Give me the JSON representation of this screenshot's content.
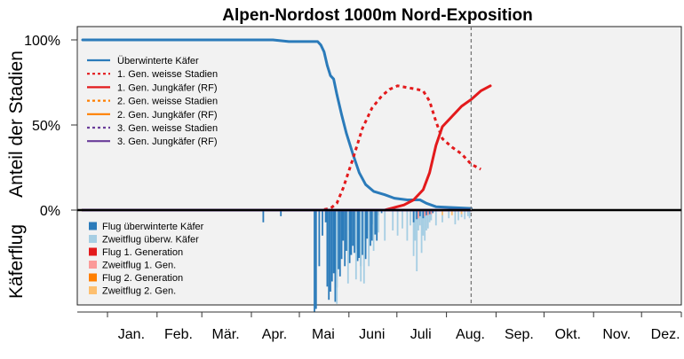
{
  "chart_data": {
    "type": "line",
    "title": "Alpen-Nordost 1000m Nord-Exposition",
    "ylabel_top": "Anteil der Stadien",
    "ylabel_bottom": "Käferflug",
    "yticks": [
      "100%",
      "50%",
      "0%"
    ],
    "months": [
      "Jan.",
      "Feb.",
      "Mär.",
      "Apr.",
      "Mai",
      "Juni",
      "Juli",
      "Aug.",
      "Sep.",
      "Okt.",
      "Nov.",
      "Dez."
    ],
    "grid": false,
    "legend_position": "top-left",
    "current_day": 244,
    "series": [
      {
        "name": "Überwinterte Käfer",
        "color": "#2b7bba",
        "dash": "solid",
        "points": [
          [
            1,
            100
          ],
          [
            80,
            100
          ],
          [
            120,
            100
          ],
          [
            130,
            99
          ],
          [
            148,
            99
          ],
          [
            150,
            97
          ],
          [
            152,
            93
          ],
          [
            154,
            85
          ],
          [
            156,
            79
          ],
          [
            158,
            77
          ],
          [
            160,
            68
          ],
          [
            163,
            56
          ],
          [
            166,
            45
          ],
          [
            170,
            33
          ],
          [
            174,
            22
          ],
          [
            178,
            15
          ],
          [
            183,
            11
          ],
          [
            190,
            9
          ],
          [
            196,
            7
          ],
          [
            204,
            6
          ],
          [
            212,
            6
          ],
          [
            216,
            4
          ],
          [
            222,
            2
          ],
          [
            232,
            1.5
          ],
          [
            244,
            1
          ]
        ]
      },
      {
        "name": "1. Gen. weisse Stadien",
        "color": "#e31a1c",
        "dash": "dotted",
        "points": [
          [
            1,
            0
          ],
          [
            150,
            0
          ],
          [
            156,
            1
          ],
          [
            160,
            4
          ],
          [
            164,
            13
          ],
          [
            170,
            30
          ],
          [
            176,
            48
          ],
          [
            182,
            60
          ],
          [
            188,
            67
          ],
          [
            193,
            71
          ],
          [
            198,
            73
          ],
          [
            204,
            72
          ],
          [
            210,
            71
          ],
          [
            214,
            70
          ],
          [
            218,
            64
          ],
          [
            222,
            52
          ],
          [
            226,
            42
          ],
          [
            232,
            37
          ],
          [
            238,
            33
          ],
          [
            244,
            27
          ],
          [
            250,
            24
          ]
        ]
      },
      {
        "name": "1. Gen. Jungkäfer (RF)",
        "color": "#e31a1c",
        "dash": "solid",
        "points": [
          [
            1,
            0
          ],
          [
            190,
            0
          ],
          [
            196,
            1.5
          ],
          [
            202,
            3
          ],
          [
            208,
            6
          ],
          [
            214,
            12
          ],
          [
            218,
            22
          ],
          [
            222,
            38
          ],
          [
            226,
            49
          ],
          [
            232,
            55
          ],
          [
            238,
            61
          ],
          [
            244,
            65
          ],
          [
            250,
            70
          ],
          [
            256,
            73
          ]
        ]
      },
      {
        "name": "2. Gen. weisse Stadien",
        "color": "#ff7f00",
        "dash": "dotted",
        "points": [
          [
            1,
            0
          ],
          [
            244,
            0
          ]
        ]
      },
      {
        "name": "2. Gen. Jungkäfer (RF)",
        "color": "#ff7f00",
        "dash": "solid",
        "points": [
          [
            1,
            0
          ],
          [
            244,
            0
          ]
        ]
      },
      {
        "name": "3. Gen. weisse Stadien",
        "color": "#6a3d9a",
        "dash": "dotted",
        "points": [
          [
            1,
            0
          ],
          [
            244,
            0
          ]
        ]
      },
      {
        "name": "3. Gen. Jungkäfer (RF)",
        "color": "#6a3d9a",
        "dash": "solid",
        "points": [
          [
            1,
            0
          ],
          [
            244,
            0
          ]
        ]
      }
    ],
    "flight_legend": [
      {
        "name": "Flug überwinterte Käfer",
        "color": "#2b7bba"
      },
      {
        "name": "Zweitflug überw. Käfer",
        "color": "#a6cee3"
      },
      {
        "name": "Flug 1. Generation",
        "color": "#e31a1c"
      },
      {
        "name": "Zweitflug 1. Gen.",
        "color": "#fb9a99"
      },
      {
        "name": "Flug 2. Generation",
        "color": "#ff7f00"
      },
      {
        "name": "Zweitflug 2. Gen.",
        "color": "#fdbf6f"
      }
    ],
    "flight_bars": [
      {
        "day": 114,
        "value": 0.12,
        "series": 0
      },
      {
        "day": 125,
        "value": 0.06,
        "series": 0
      },
      {
        "day": 146,
        "value": 1.0,
        "series": 0
      },
      {
        "day": 147,
        "value": 0.97,
        "series": 0
      },
      {
        "day": 149,
        "value": 0.55,
        "series": 0
      },
      {
        "day": 151,
        "value": 0.25,
        "series": 0
      },
      {
        "day": 153,
        "value": 0.12,
        "series": 0
      },
      {
        "day": 154,
        "value": 0.75,
        "series": 0
      },
      {
        "day": 155,
        "value": 0.88,
        "series": 0
      },
      {
        "day": 156,
        "value": 0.8,
        "series": 0
      },
      {
        "day": 157,
        "value": 0.7,
        "series": 0
      },
      {
        "day": 158,
        "value": 0.62,
        "series": 0
      },
      {
        "day": 159,
        "value": 0.9,
        "series": 0
      },
      {
        "day": 160,
        "value": 0.76,
        "series": 0
      },
      {
        "day": 161,
        "value": 0.58,
        "series": 0
      },
      {
        "day": 162,
        "value": 0.65,
        "series": 0
      },
      {
        "day": 163,
        "value": 0.48,
        "series": 0
      },
      {
        "day": 164,
        "value": 0.3,
        "series": 0
      },
      {
        "day": 165,
        "value": 0.55,
        "series": 0
      },
      {
        "day": 166,
        "value": 0.4,
        "series": 0
      },
      {
        "day": 167,
        "value": 0.2,
        "series": 0
      },
      {
        "day": 168,
        "value": 0.52,
        "series": 0
      },
      {
        "day": 169,
        "value": 0.44,
        "series": 0
      },
      {
        "day": 170,
        "value": 0.35,
        "series": 0
      },
      {
        "day": 171,
        "value": 0.42,
        "series": 0
      },
      {
        "day": 172,
        "value": 0.38,
        "series": 0
      },
      {
        "day": 173,
        "value": 0.5,
        "series": 0
      },
      {
        "day": 174,
        "value": 0.47,
        "series": 0
      },
      {
        "day": 175,
        "value": 0.55,
        "series": 0
      },
      {
        "day": 176,
        "value": 0.44,
        "series": 0
      },
      {
        "day": 177,
        "value": 0.3,
        "series": 0
      },
      {
        "day": 178,
        "value": 0.48,
        "series": 0
      },
      {
        "day": 179,
        "value": 0.28,
        "series": 0
      },
      {
        "day": 180,
        "value": 0.2,
        "series": 0
      },
      {
        "day": 181,
        "value": 0.35,
        "series": 0
      },
      {
        "day": 182,
        "value": 0.3,
        "series": 0
      },
      {
        "day": 183,
        "value": 0.14,
        "series": 0
      },
      {
        "day": 184,
        "value": 0.24,
        "series": 0
      },
      {
        "day": 185,
        "value": 0.3,
        "series": 0
      },
      {
        "day": 186,
        "value": 0.05,
        "series": 0
      },
      {
        "day": 188,
        "value": 0.03,
        "series": 0
      },
      {
        "day": 160,
        "value": 0.92,
        "series": 1
      },
      {
        "day": 167,
        "value": 0.72,
        "series": 1
      },
      {
        "day": 172,
        "value": 0.68,
        "series": 1
      },
      {
        "day": 175,
        "value": 0.7,
        "series": 1
      },
      {
        "day": 177,
        "value": 0.72,
        "series": 1
      },
      {
        "day": 180,
        "value": 0.55,
        "series": 1
      },
      {
        "day": 183,
        "value": 0.4,
        "series": 1
      },
      {
        "day": 186,
        "value": 0.22,
        "series": 1
      },
      {
        "day": 190,
        "value": 0.3,
        "series": 1
      },
      {
        "day": 195,
        "value": 0.2,
        "series": 1
      },
      {
        "day": 198,
        "value": 0.25,
        "series": 1
      },
      {
        "day": 201,
        "value": 0.18,
        "series": 1
      },
      {
        "day": 204,
        "value": 0.3,
        "series": 1
      },
      {
        "day": 206,
        "value": 0.15,
        "series": 1
      },
      {
        "day": 208,
        "value": 0.45,
        "series": 1
      },
      {
        "day": 209,
        "value": 0.3,
        "series": 1
      },
      {
        "day": 210,
        "value": 0.6,
        "series": 1
      },
      {
        "day": 211,
        "value": 0.2,
        "series": 1
      },
      {
        "day": 212,
        "value": 0.15,
        "series": 1
      },
      {
        "day": 213,
        "value": 0.42,
        "series": 1
      },
      {
        "day": 214,
        "value": 0.25,
        "series": 1
      },
      {
        "day": 215,
        "value": 0.3,
        "series": 1
      },
      {
        "day": 216,
        "value": 0.2,
        "series": 1
      },
      {
        "day": 217,
        "value": 0.18,
        "series": 1
      },
      {
        "day": 218,
        "value": 0.12,
        "series": 1
      },
      {
        "day": 219,
        "value": 0.1,
        "series": 1
      },
      {
        "day": 222,
        "value": 0.15,
        "series": 1
      },
      {
        "day": 226,
        "value": 0.12,
        "series": 1
      },
      {
        "day": 230,
        "value": 0.08,
        "series": 1
      },
      {
        "day": 234,
        "value": 0.14,
        "series": 1
      },
      {
        "day": 236,
        "value": 0.1,
        "series": 1
      },
      {
        "day": 238,
        "value": 0.07,
        "series": 1
      },
      {
        "day": 240,
        "value": 0.09,
        "series": 1
      },
      {
        "day": 242,
        "value": 0.06,
        "series": 1
      },
      {
        "day": 243,
        "value": 0.08,
        "series": 1
      },
      {
        "day": 208,
        "value": 0.12,
        "series": 0
      },
      {
        "day": 210,
        "value": 0.09,
        "series": 0
      },
      {
        "day": 212,
        "value": 0.06,
        "series": 0
      },
      {
        "day": 214,
        "value": 0.08,
        "series": 0
      },
      {
        "day": 216,
        "value": 0.05,
        "series": 0
      },
      {
        "day": 218,
        "value": 0.04,
        "series": 0
      },
      {
        "day": 220,
        "value": 0.03,
        "series": 0
      },
      {
        "day": 211,
        "value": 0.08,
        "series": 3
      },
      {
        "day": 215,
        "value": 0.06,
        "series": 3
      },
      {
        "day": 217,
        "value": 0.05,
        "series": 3
      },
      {
        "day": 219,
        "value": 0.04,
        "series": 3
      },
      {
        "day": 226,
        "value": 0.05,
        "series": 5
      },
      {
        "day": 232,
        "value": 0.05,
        "series": 5
      },
      {
        "day": 238,
        "value": 0.04,
        "series": 5
      }
    ]
  }
}
